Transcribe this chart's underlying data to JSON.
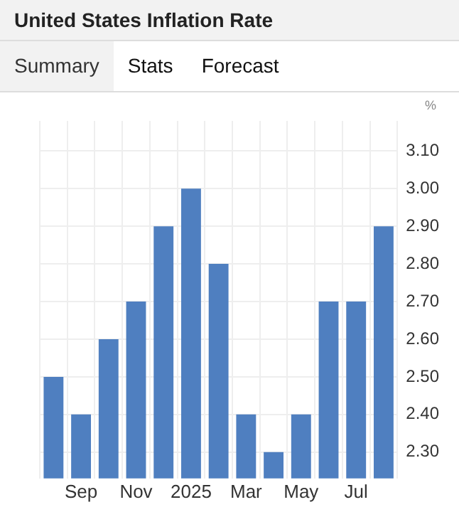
{
  "chart_data": {
    "type": "bar",
    "title": "United States Inflation Rate",
    "annotations": [
      "Summary",
      "Stats",
      "Forecast"
    ],
    "ylabel": "%",
    "categories": [
      null,
      "Sep",
      null,
      "Nov",
      null,
      "2025",
      null,
      "Mar",
      null,
      "May",
      null,
      "Jul",
      null
    ],
    "values": [
      2.5,
      2.4,
      2.6,
      2.7,
      2.9,
      3.0,
      2.8,
      2.4,
      2.3,
      2.4,
      2.7,
      2.7,
      2.9
    ],
    "color": "#4f7fc0",
    "ylim": [
      2.23,
      3.18
    ],
    "yticks": [
      {
        "value": 2.3,
        "label": "2.30"
      },
      {
        "value": 2.4,
        "label": "2.40"
      },
      {
        "value": 2.5,
        "label": "2.50"
      },
      {
        "value": 2.6,
        "label": "2.60"
      },
      {
        "value": 2.7,
        "label": "2.70"
      },
      {
        "value": 2.8,
        "label": "2.80"
      },
      {
        "value": 2.9,
        "label": "2.90"
      },
      {
        "value": 3.0,
        "label": "3.00"
      },
      {
        "value": 3.1,
        "label": "3.10"
      }
    ],
    "grid": true,
    "legend": false
  }
}
